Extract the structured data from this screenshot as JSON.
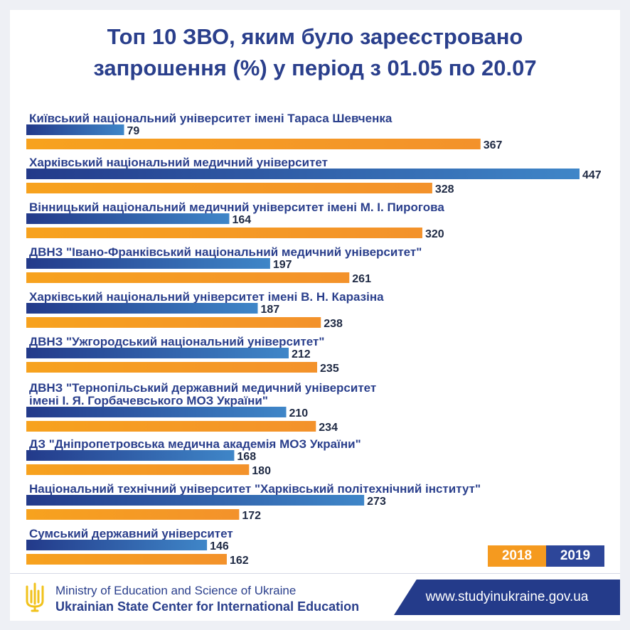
{
  "title": {
    "line1": "Топ 10 ЗВО, яким було зареєстровано",
    "line2": "запрошення (%) у період з 01.05 по 20.07"
  },
  "colors": {
    "series_2018": "#f59a1f",
    "series_2019": "#2d4699",
    "title": "#2a3f8c"
  },
  "chart_data": {
    "type": "bar",
    "orientation": "horizontal",
    "title": "Топ 10 ЗВО, яким було зареєстровано запрошення (%) у період з 01.05 по 20.07",
    "categories": [
      "Київський національний університет імені Тараса Шевченка",
      "Харківський національний медичний університет",
      "Вінницький національний медичний університет імені М. І. Пирогова",
      "ДВНЗ \"Івано-Франківський національний медичний університет\"",
      "Харківський національний університет імені В. Н. Каразіна",
      "ДВНЗ \"Ужгородський національний університет\"",
      "ДВНЗ \"Тернопільський державний медичний університет імені І. Я. Горбачевського МОЗ України\"",
      "ДЗ \"Дніпропетровська медична академія МОЗ України\"",
      "Національний технічний університет \"Харківський політехнічний інститут\"",
      "Сумський державний університет"
    ],
    "category_lines": [
      [
        "Київський національний університет імені Тараса Шевченка"
      ],
      [
        "Харківський національний медичний університет"
      ],
      [
        "Вінницький національний медичний університет імені М. І. Пирогова"
      ],
      [
        "ДВНЗ \"Івано-Франківський національний медичний університет\""
      ],
      [
        "Харківський національний університет імені В. Н. Каразіна"
      ],
      [
        "ДВНЗ \"Ужгородський національний університет\""
      ],
      [
        "ДВНЗ \"Тернопільський державний медичний університет",
        "імені І. Я. Горбачевського МОЗ України\""
      ],
      [
        "ДЗ \"Дніпропетровська медична академія МОЗ України\""
      ],
      [
        "Національний технічний університет \"Харківський політехнічний інститут\""
      ],
      [
        "Сумський державний університет"
      ]
    ],
    "series": [
      {
        "name": "2019",
        "values": [
          79,
          447,
          164,
          197,
          187,
          212,
          210,
          168,
          273,
          146
        ]
      },
      {
        "name": "2018",
        "values": [
          367,
          328,
          320,
          261,
          238,
          235,
          234,
          180,
          172,
          162
        ]
      }
    ],
    "xlim": [
      0,
      447
    ]
  },
  "legend": {
    "label_2018": "2018",
    "label_2019": "2019"
  },
  "footer": {
    "org_line1": "Ministry of Education and Science of Ukraine",
    "org_line2": "Ukrainian State Center for International Education",
    "website": "www.studyinukraine.gov.ua",
    "emblem_icon": "trident-icon"
  }
}
